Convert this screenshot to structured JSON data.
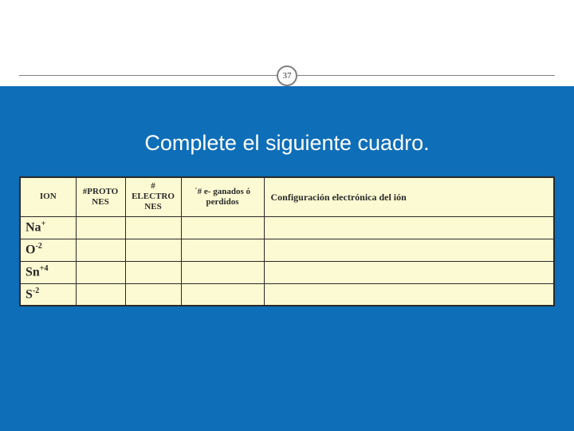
{
  "slide": {
    "page_number": "37",
    "title": "Complete el siguiente cuadro.",
    "colors": {
      "background_blue": "#0e6eb8",
      "cell_bg": "#fcfad2",
      "border": "#2a2a2a",
      "title_color": "#ffffff",
      "badge_border": "#808080"
    }
  },
  "table": {
    "headers": {
      "ion": "ION",
      "protones": "#PROTONES",
      "electrones": "# ELECTRONES",
      "ganados": "´# e- ganados ó perdidos",
      "config": "Configuración electrónica del ión"
    },
    "rows": [
      {
        "base": "Na",
        "sup": "+"
      },
      {
        "base": "O",
        "sup": "-2"
      },
      {
        "base": "Sn",
        "sup": "+4"
      },
      {
        "base": "S",
        "sup": "-2"
      }
    ]
  }
}
